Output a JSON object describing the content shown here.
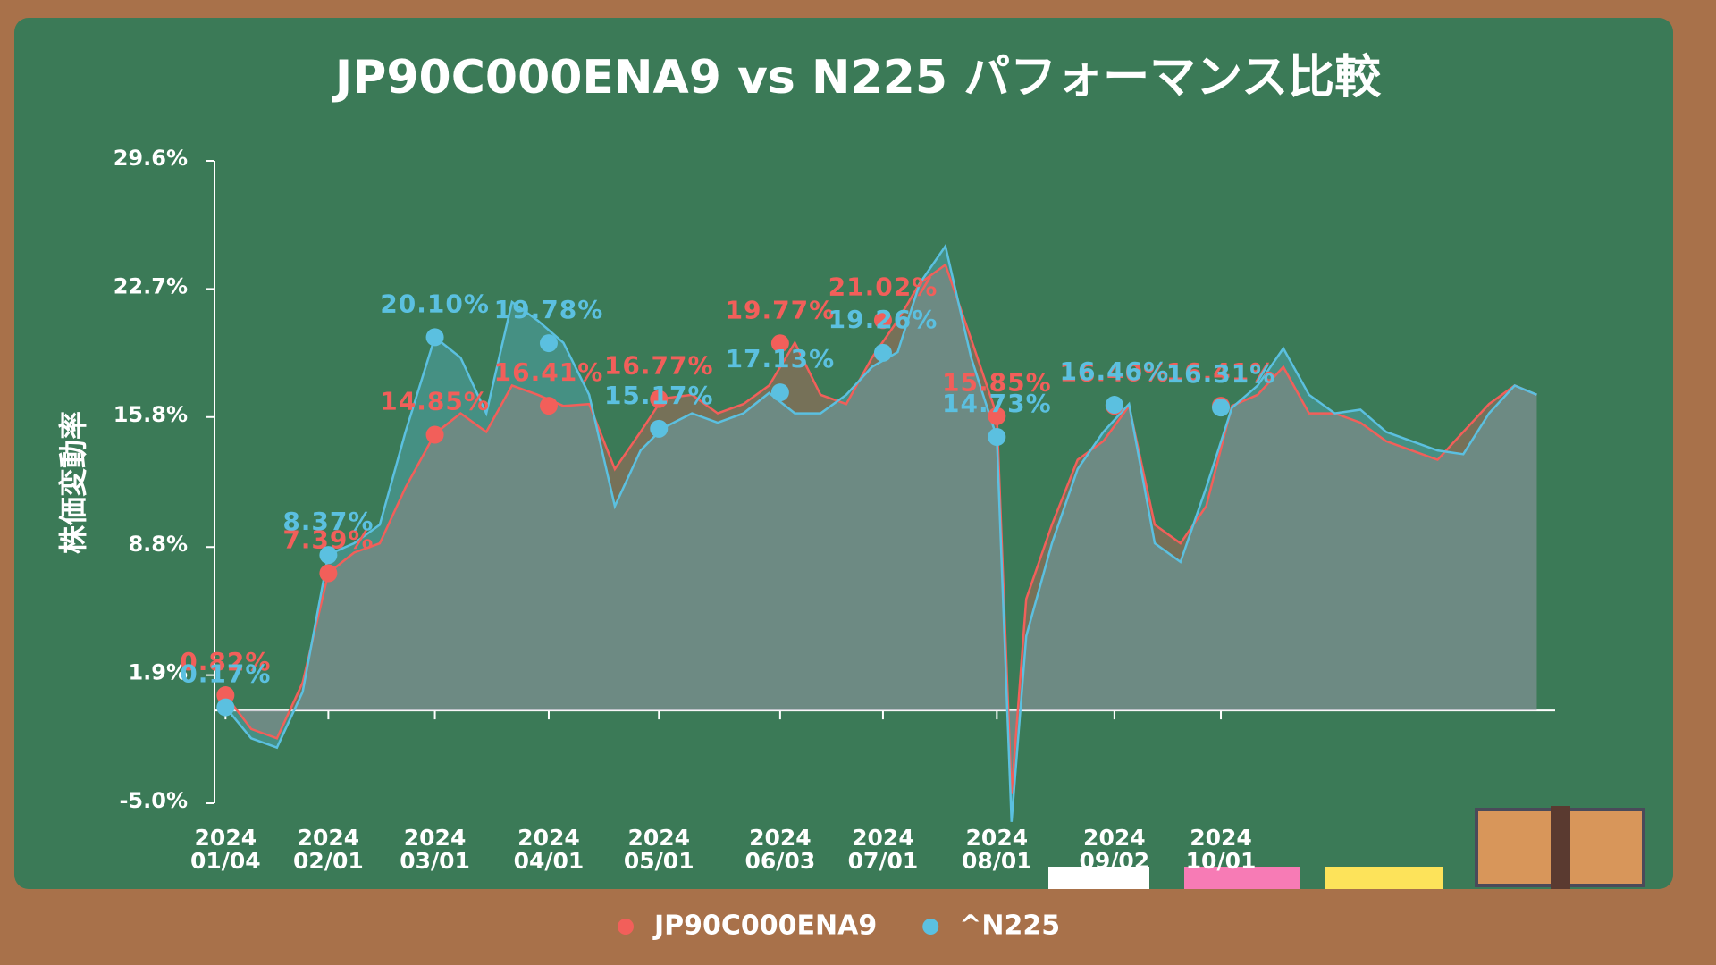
{
  "chart_data": {
    "type": "line",
    "title": "JP90C000ENA9 vs N225 パフォーマンス比較",
    "ylabel": "株価変動率",
    "x": [
      "2024-01-04",
      "2024-01-11",
      "2024-01-18",
      "2024-01-25",
      "2024-02-01",
      "2024-02-08",
      "2024-02-15",
      "2024-02-22",
      "2024-03-01",
      "2024-03-08",
      "2024-03-15",
      "2024-03-22",
      "2024-03-29",
      "2024-04-05",
      "2024-04-12",
      "2024-04-19",
      "2024-04-26",
      "2024-05-02",
      "2024-05-10",
      "2024-05-17",
      "2024-05-24",
      "2024-05-31",
      "2024-06-07",
      "2024-06-14",
      "2024-06-21",
      "2024-06-28",
      "2024-07-05",
      "2024-07-11",
      "2024-07-18",
      "2024-07-25",
      "2024-08-01",
      "2024-08-05",
      "2024-08-09",
      "2024-08-16",
      "2024-08-23",
      "2024-08-30",
      "2024-09-06",
      "2024-09-13",
      "2024-09-20",
      "2024-09-27",
      "2024-10-04",
      "2024-10-11",
      "2024-10-18",
      "2024-10-25",
      "2024-11-01",
      "2024-11-08",
      "2024-11-15",
      "2024-11-22",
      "2024-11-29",
      "2024-12-06",
      "2024-12-13",
      "2024-12-20",
      "2024-12-26"
    ],
    "series": [
      {
        "name": "JP90C000ENA9",
        "color": "#f25f5a",
        "values": [
          0.82,
          -1,
          -1.5,
          1.5,
          7.4,
          8.5,
          9,
          12,
          14.9,
          16,
          15,
          17.5,
          17,
          16.4,
          16.5,
          13,
          15,
          16.8,
          17,
          16,
          16.5,
          17.5,
          19.8,
          17,
          16.5,
          19,
          21,
          23,
          24,
          20,
          15.9,
          -4.5,
          6,
          10,
          13.5,
          14.5,
          16.4,
          10,
          9,
          11,
          16.4,
          17,
          18.5,
          16,
          16,
          15.5,
          14.5,
          14,
          13.5,
          15,
          16.5,
          17.5,
          17
        ],
        "points": {
          "x": [
            "2024-01-04",
            "2024-02-01",
            "2024-03-01",
            "2024-04-01",
            "2024-05-01",
            "2024-06-03",
            "2024-07-01",
            "2024-08-01",
            "2024-09-02",
            "2024-10-01"
          ],
          "values": [
            0.82,
            7.39,
            14.85,
            16.41,
            16.77,
            19.77,
            21.02,
            15.85,
            16.4,
            16.41
          ],
          "value_labels": [
            "0.82%",
            "7.39%",
            "14.85%",
            "16.41%",
            "16.77%",
            "19.77%",
            "21.02%",
            "15.85%",
            "16.40%",
            "16.41%"
          ]
        }
      },
      {
        "name": "^N225",
        "color": "#5bc0e0",
        "values": [
          0.17,
          -1.5,
          -2,
          1,
          8.4,
          9,
          10,
          15,
          20.1,
          19,
          16,
          22,
          21,
          19.8,
          17,
          11,
          14,
          15.2,
          16,
          15.5,
          16,
          17.1,
          16,
          16,
          17,
          18.5,
          19.3,
          23,
          25,
          19,
          14.7,
          -6,
          4,
          9,
          13,
          15,
          16.5,
          9,
          8,
          12,
          16.3,
          17.5,
          19.5,
          17,
          16,
          16.2,
          15,
          14.5,
          14,
          13.8,
          16,
          17.5,
          17
        ],
        "points": {
          "x": [
            "2024-01-04",
            "2024-02-01",
            "2024-03-01",
            "2024-04-01",
            "2024-05-01",
            "2024-06-03",
            "2024-07-01",
            "2024-08-01",
            "2024-09-02",
            "2024-10-01"
          ],
          "values": [
            0.17,
            8.37,
            20.1,
            19.78,
            15.17,
            17.13,
            19.26,
            14.73,
            16.46,
            16.31
          ],
          "value_labels": [
            "0.17%",
            "8.37%",
            "20.10%",
            "19.78%",
            "15.17%",
            "17.13%",
            "19.26%",
            "14.73%",
            "16.46%",
            "16.31%"
          ]
        }
      }
    ],
    "xlim": [
      "2024-01-01",
      "2024-12-31"
    ],
    "xticks": [
      {
        "value": "2024-01-04",
        "label": "2024\n01/04"
      },
      {
        "value": "2024-02-01",
        "label": "2024\n02/01"
      },
      {
        "value": "2024-03-01",
        "label": "2024\n03/01"
      },
      {
        "value": "2024-04-01",
        "label": "2024\n04/01"
      },
      {
        "value": "2024-05-01",
        "label": "2024\n05/01"
      },
      {
        "value": "2024-06-03",
        "label": "2024\n06/03"
      },
      {
        "value": "2024-07-01",
        "label": "2024\n07/01"
      },
      {
        "value": "2024-08-01",
        "label": "2024\n08/01"
      },
      {
        "value": "2024-09-02",
        "label": "2024\n09/02"
      },
      {
        "value": "2024-10-01",
        "label": "2024\n10/01"
      }
    ],
    "ylim": [
      -5.0,
      29.6
    ],
    "yticks": [
      {
        "value": -5.0,
        "label": "-5.0%"
      },
      {
        "value": 1.9,
        "label": "1.9%"
      },
      {
        "value": 8.8,
        "label": "8.8%"
      },
      {
        "value": 15.8,
        "label": "15.8%"
      },
      {
        "value": 22.7,
        "label": "22.7%"
      },
      {
        "value": 29.6,
        "label": "29.6%"
      }
    ],
    "legend": "bottom"
  }
}
